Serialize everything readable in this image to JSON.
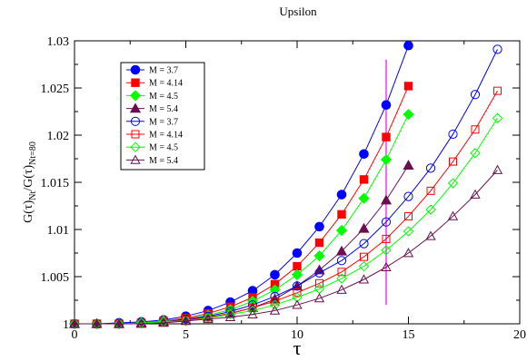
{
  "chart_data": {
    "type": "line",
    "title": "Upsilon",
    "xlabel": "τ",
    "ylabel_main": "G(τ)",
    "ylabel_sub1": "Nt",
    "ylabel_mid": "/G(τ)",
    "ylabel_sub2": "Nt=80",
    "xlim": [
      0,
      20
    ],
    "ylim": [
      1.0,
      1.03
    ],
    "xticks": [
      0,
      5,
      10,
      15,
      20
    ],
    "yticks": [
      1.0,
      1.005,
      1.01,
      1.015,
      1.02,
      1.025,
      1.03
    ],
    "ytick_labels": [
      "1",
      "1.005",
      "1.01",
      "1.015",
      "1.02",
      "1.025",
      "1.03"
    ],
    "grid": false,
    "legend_position": "top-left",
    "vertical_line": {
      "x": 14,
      "y_range": [
        1.002,
        1.028
      ],
      "color": "#ff00ff"
    },
    "series": [
      {
        "name": "M = 3.7",
        "color": "#0000ff",
        "marker": "circle",
        "filled": true,
        "x": [
          0,
          1,
          2,
          3,
          4,
          5,
          6,
          7,
          8,
          9,
          10,
          11,
          12,
          13,
          14,
          15
        ],
        "y": [
          1.0,
          1.0,
          1.0001,
          1.0002,
          1.0004,
          1.0008,
          1.0014,
          1.0023,
          1.0035,
          1.0052,
          1.0075,
          1.0103,
          1.0137,
          1.018,
          1.0232,
          1.0295
        ]
      },
      {
        "name": "M = 4.14",
        "color": "#ff0000",
        "marker": "square",
        "filled": true,
        "x": [
          0,
          1,
          2,
          3,
          4,
          5,
          6,
          7,
          8,
          9,
          10,
          11,
          12,
          13,
          14,
          15
        ],
        "y": [
          1.0,
          1.0,
          1.0,
          1.0001,
          1.0003,
          1.0006,
          1.0011,
          1.0018,
          1.0028,
          1.0042,
          1.0061,
          1.0086,
          1.0116,
          1.0153,
          1.0198,
          1.0252
        ]
      },
      {
        "name": "M = 4.5",
        "color": "#00ff00",
        "marker": "diamond",
        "filled": true,
        "x": [
          0,
          1,
          2,
          3,
          4,
          5,
          6,
          7,
          8,
          9,
          10,
          11,
          12,
          13,
          14,
          15
        ],
        "y": [
          1.0,
          1.0,
          1.0,
          1.0001,
          1.0003,
          1.0005,
          1.0009,
          1.0015,
          1.0024,
          1.0036,
          1.0052,
          1.0072,
          1.0099,
          1.0133,
          1.0174,
          1.0222
        ]
      },
      {
        "name": "M = 5.4",
        "color": "#6b0f4f",
        "marker": "triangle",
        "filled": true,
        "x": [
          0,
          1,
          2,
          3,
          4,
          5,
          6,
          7,
          8,
          9,
          10,
          11,
          12,
          13,
          14,
          15
        ],
        "y": [
          1.0,
          1.0,
          1.0,
          1.0001,
          1.0002,
          1.0004,
          1.0007,
          1.0011,
          1.0017,
          1.0026,
          1.004,
          1.0057,
          1.0077,
          1.0101,
          1.0131,
          1.0168
        ]
      },
      {
        "name": "M = 3.7",
        "color": "#0000ff",
        "marker": "circle",
        "filled": false,
        "x": [
          0,
          1,
          2,
          3,
          4,
          5,
          6,
          7,
          8,
          9,
          10,
          11,
          12,
          13,
          14,
          15,
          16,
          17,
          18,
          19
        ],
        "y": [
          1.0,
          1.0,
          1.0,
          1.0001,
          1.0002,
          1.0005,
          1.0008,
          1.0013,
          1.002,
          1.0029,
          1.004,
          1.0054,
          1.0067,
          1.0085,
          1.0108,
          1.0135,
          1.0165,
          1.0201,
          1.0243,
          1.0291
        ]
      },
      {
        "name": "M = 4.14",
        "color": "#ff0000",
        "marker": "square",
        "filled": false,
        "x": [
          0,
          1,
          2,
          3,
          4,
          5,
          6,
          7,
          8,
          9,
          10,
          11,
          12,
          13,
          14,
          15,
          16,
          17,
          18,
          19
        ],
        "y": [
          1.0,
          1.0,
          1.0,
          1.0001,
          1.0002,
          1.0004,
          1.0007,
          1.0011,
          1.0017,
          1.0024,
          1.0033,
          1.0043,
          1.0055,
          1.0071,
          1.009,
          1.0114,
          1.0141,
          1.0172,
          1.0206,
          1.0247
        ]
      },
      {
        "name": "M = 4.5",
        "color": "#00ff00",
        "marker": "diamond",
        "filled": false,
        "x": [
          0,
          1,
          2,
          3,
          4,
          5,
          6,
          7,
          8,
          9,
          10,
          11,
          12,
          13,
          14,
          15,
          16,
          17,
          18,
          19
        ],
        "y": [
          1.0,
          1.0,
          1.0,
          1.0001,
          1.0002,
          1.0003,
          1.0006,
          1.001,
          1.0014,
          1.002,
          1.0028,
          1.0037,
          1.0048,
          1.0061,
          1.0078,
          1.0098,
          1.0121,
          1.0149,
          1.0181,
          1.0218
        ]
      },
      {
        "name": "M = 5.4",
        "color": "#6b0f4f",
        "marker": "triangle",
        "filled": false,
        "x": [
          0,
          1,
          2,
          3,
          4,
          5,
          6,
          7,
          8,
          9,
          10,
          11,
          12,
          13,
          14,
          15,
          16,
          17,
          18,
          19
        ],
        "y": [
          1.0,
          1.0,
          1.0,
          1.0,
          1.0001,
          1.0003,
          1.0005,
          1.0007,
          1.001,
          1.0014,
          1.002,
          1.0027,
          1.0036,
          1.0047,
          1.006,
          1.0075,
          1.0093,
          1.0114,
          1.0137,
          1.0163
        ]
      }
    ]
  }
}
